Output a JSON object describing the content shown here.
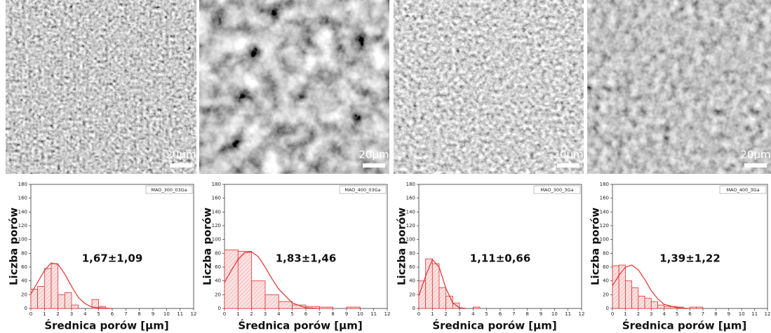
{
  "images": [
    {
      "scale_bar": "20µm"
    },
    {
      "scale_bar": "20µm"
    },
    {
      "scale_bar": "20µm"
    },
    {
      "scale_bar": "20µm"
    }
  ],
  "chart_data": [
    {
      "type": "histogram",
      "xlabel": "Średnica porów [µm]",
      "ylabel": "Liczba porów",
      "annotation": "1,67±1,09",
      "bins": [
        0,
        0.5,
        1,
        1.5,
        2,
        2.5,
        3,
        3.5,
        4,
        4.5,
        5,
        5.5
      ],
      "series": [
        {
          "name": "MAO_300_03Ga",
          "color": "#e03030",
          "values": [
            28,
            32,
            58,
            65,
            20,
            23,
            5,
            0,
            0,
            13,
            3
          ]
        }
      ],
      "fit": {
        "x": [
          0,
          0.5,
          1,
          1.5,
          2,
          2.5,
          3,
          3.5,
          4,
          4.5,
          5,
          6
        ],
        "values": [
          21,
          38,
          55,
          66,
          64,
          50,
          32,
          16,
          7,
          2,
          1,
          0
        ]
      },
      "xlim": [
        0,
        12
      ],
      "ylim": [
        0,
        180
      ],
      "xticks": [
        0,
        1,
        2,
        3,
        4,
        5,
        6,
        7,
        8,
        9,
        10,
        11,
        12
      ],
      "yticks": [
        0,
        20,
        40,
        60,
        80,
        100,
        120,
        140,
        160,
        180
      ]
    },
    {
      "type": "histogram",
      "xlabel": "Średnica porów [µm]",
      "ylabel": "Liczba porów",
      "annotation": "1,83±1,46",
      "bins": [
        0,
        1,
        2,
        3,
        4,
        5,
        6,
        7,
        8,
        9,
        10
      ],
      "series": [
        {
          "name": "MAO_400_03Ga",
          "color": "#e03030",
          "values": [
            85,
            83,
            40,
            20,
            10,
            5,
            3,
            2,
            0,
            2
          ]
        }
      ],
      "fit": {
        "x": [
          0,
          0.5,
          1,
          1.5,
          2,
          2.5,
          3,
          3.5,
          4,
          5,
          6,
          7
        ],
        "values": [
          38,
          55,
          71,
          81,
          82,
          75,
          60,
          43,
          28,
          8,
          1,
          0
        ]
      },
      "xlim": [
        0,
        12
      ],
      "ylim": [
        0,
        180
      ],
      "xticks": [
        0,
        1,
        2,
        3,
        4,
        5,
        6,
        7,
        8,
        9,
        10,
        11,
        12
      ],
      "yticks": [
        0,
        20,
        40,
        60,
        80,
        100,
        120,
        140,
        160,
        180
      ]
    },
    {
      "type": "histogram",
      "xlabel": "Średnica porów [µm]",
      "ylabel": "Liczba porów",
      "annotation": "1,11±0,66",
      "bins": [
        0,
        0.5,
        1,
        1.5,
        2,
        2.5,
        3,
        3.5,
        4,
        4.5
      ],
      "series": [
        {
          "name": "MAO_300_3Ga",
          "color": "#e03030",
          "values": [
            40,
            72,
            65,
            30,
            18,
            8,
            0,
            0,
            2
          ]
        }
      ],
      "fit": {
        "x": [
          0,
          0.5,
          1,
          1.5,
          2,
          2.5,
          3,
          3.5
        ],
        "values": [
          18,
          47,
          71,
          60,
          29,
          8,
          1,
          0
        ]
      },
      "xlim": [
        0,
        12
      ],
      "ylim": [
        0,
        180
      ],
      "xticks": [
        0,
        1,
        2,
        3,
        4,
        5,
        6,
        7,
        8,
        9,
        10,
        11,
        12
      ],
      "yticks": [
        0,
        20,
        40,
        60,
        80,
        100,
        120,
        140,
        160,
        180
      ]
    },
    {
      "type": "histogram",
      "xlabel": "Średnica porów [µm]",
      "ylabel": "Liczba porów",
      "annotation": "1,39±1,22",
      "bins": [
        0,
        0.5,
        1,
        1.5,
        2,
        2.5,
        3,
        3.5,
        4,
        4.5,
        5,
        5.5,
        6,
        6.5,
        7
      ],
      "series": [
        {
          "name": "MAO_400_3Ga",
          "color": "#e03030",
          "values": [
            62,
            63,
            40,
            30,
            18,
            15,
            10,
            5,
            3,
            3,
            2,
            0,
            2,
            2
          ]
        }
      ],
      "fit": {
        "x": [
          0,
          0.5,
          1,
          1.5,
          2,
          2.5,
          3,
          3.5,
          4,
          5,
          6
        ],
        "values": [
          33,
          48,
          60,
          63,
          56,
          42,
          26,
          14,
          6,
          1,
          0
        ]
      },
      "xlim": [
        0,
        12
      ],
      "ylim": [
        0,
        180
      ],
      "xticks": [
        0,
        1,
        2,
        3,
        4,
        5,
        6,
        7,
        8,
        9,
        10,
        11,
        12
      ],
      "yticks": [
        0,
        20,
        40,
        60,
        80,
        100,
        120,
        140,
        160,
        180
      ]
    }
  ]
}
